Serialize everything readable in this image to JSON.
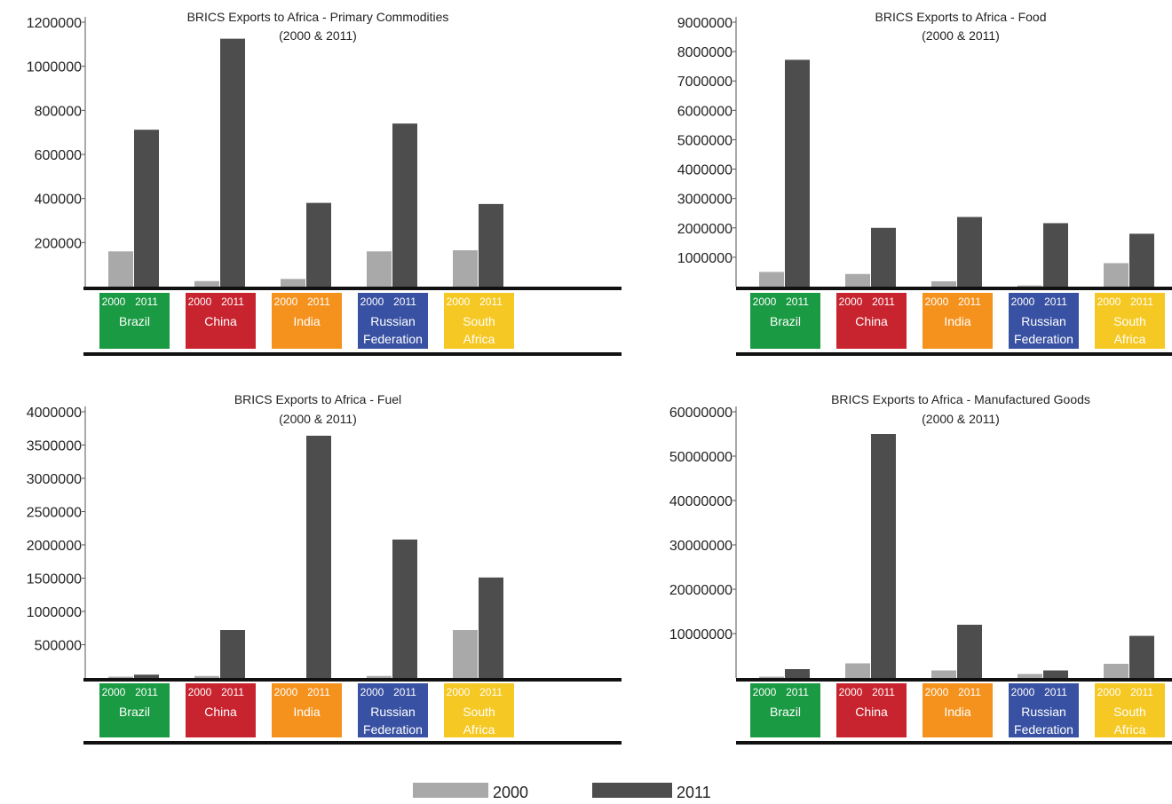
{
  "colors": {
    "bar_2000": "#a9a9a9",
    "bar_2011": "#4d4d4d",
    "axis": "#111111",
    "countries": {
      "Brazil": "#1a9a42",
      "China": "#c8242f",
      "India": "#f5921e",
      "Russian Federation": "#3951a2",
      "South Africa": "#f5c823"
    }
  },
  "legend": [
    {
      "label": "2000",
      "color": "#a9a9a9"
    },
    {
      "label": "2011",
      "color": "#4d4d4d"
    }
  ],
  "chart_data": [
    {
      "type": "bar",
      "title": "BRICS Exports to Africa - Primary Commodities",
      "subtitle": "(2000 & 2011)",
      "categories": [
        "Brazil",
        "China",
        "India",
        "Russian Federation",
        "South Africa"
      ],
      "category_lines": [
        [
          "Brazil"
        ],
        [
          "China"
        ],
        [
          "India"
        ],
        [
          "Russian",
          "Federation"
        ],
        [
          "South",
          "Africa"
        ]
      ],
      "year_labels": [
        "2000",
        "2011"
      ],
      "series": [
        {
          "name": "2000",
          "values": [
            160000,
            25000,
            35000,
            160000,
            165000
          ]
        },
        {
          "name": "2011",
          "values": [
            712000,
            1125000,
            380000,
            740000,
            375000
          ]
        }
      ],
      "yticks": [
        200000,
        400000,
        600000,
        800000,
        1000000,
        1200000
      ],
      "ylim": [
        0,
        1200000
      ],
      "grid": false
    },
    {
      "type": "bar",
      "title": "BRICS Exports to Africa - Food",
      "subtitle": "(2000 & 2011)",
      "categories": [
        "Brazil",
        "China",
        "India",
        "Russian Federation",
        "South Africa"
      ],
      "category_lines": [
        [
          "Brazil"
        ],
        [
          "China"
        ],
        [
          "India"
        ],
        [
          "Russian",
          "Federation"
        ],
        [
          "South",
          "Africa"
        ]
      ],
      "year_labels": [
        "2000",
        "2011"
      ],
      "series": [
        {
          "name": "2000",
          "values": [
            500000,
            430000,
            180000,
            40000,
            800000
          ]
        },
        {
          "name": "2011",
          "values": [
            7720000,
            2000000,
            2370000,
            2160000,
            1800000
          ]
        }
      ],
      "yticks": [
        1000000,
        2000000,
        3000000,
        4000000,
        5000000,
        6000000,
        7000000,
        8000000,
        9000000
      ],
      "ylim": [
        0,
        9000000
      ],
      "grid": false
    },
    {
      "type": "bar",
      "title": "BRICS Exports to Africa - Fuel",
      "subtitle": "(2000 & 2011)",
      "categories": [
        "Brazil",
        "China",
        "India",
        "Russian Federation",
        "South Africa"
      ],
      "category_lines": [
        [
          "Brazil"
        ],
        [
          "China"
        ],
        [
          "India"
        ],
        [
          "Russian",
          "Federation"
        ],
        [
          "South",
          "Africa"
        ]
      ],
      "year_labels": [
        "2000",
        "2011"
      ],
      "series": [
        {
          "name": "2000",
          "values": [
            20000,
            30000,
            0,
            30000,
            720000
          ]
        },
        {
          "name": "2011",
          "values": [
            50000,
            720000,
            3640000,
            2080000,
            1510000
          ]
        }
      ],
      "yticks": [
        500000,
        1000000,
        1500000,
        2000000,
        2500000,
        3000000,
        3500000,
        4000000
      ],
      "ylim": [
        0,
        4000000
      ],
      "grid": false
    },
    {
      "type": "bar",
      "title": "BRICS Exports to Africa - Manufactured Goods",
      "subtitle": "(2000 & 2011)",
      "categories": [
        "Brazil",
        "China",
        "India",
        "Russian Federation",
        "South Africa"
      ],
      "category_lines": [
        [
          "Brazil"
        ],
        [
          "China"
        ],
        [
          "India"
        ],
        [
          "Russian",
          "Federation"
        ],
        [
          "South",
          "Africa"
        ]
      ],
      "year_labels": [
        "2000",
        "2011"
      ],
      "series": [
        {
          "name": "2000",
          "values": [
            300000,
            3300000,
            1700000,
            900000,
            3200000
          ]
        },
        {
          "name": "2011",
          "values": [
            2000000,
            55000000,
            12000000,
            1700000,
            9500000
          ]
        }
      ],
      "yticks": [
        10000000,
        20000000,
        30000000,
        40000000,
        50000000,
        60000000
      ],
      "ylim": [
        0,
        60000000
      ],
      "grid": false
    }
  ]
}
